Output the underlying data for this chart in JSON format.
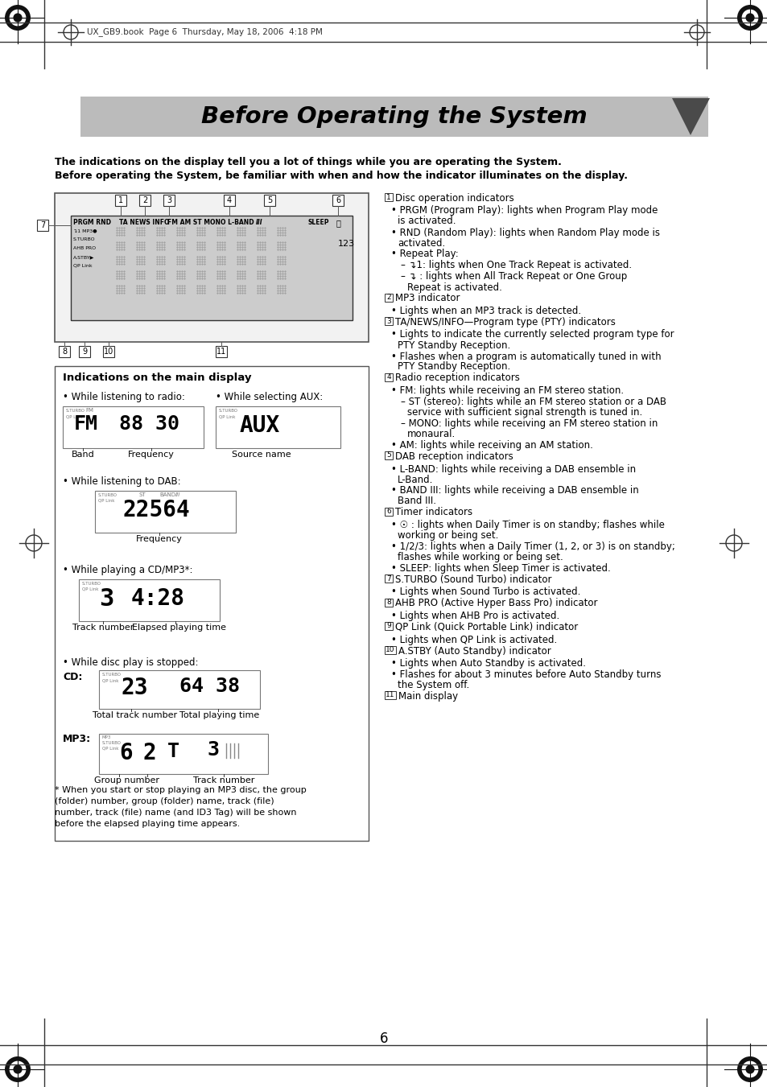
{
  "page_bg": "#ffffff",
  "header_file_text": "UX_GB9.book  Page 6  Thursday, May 18, 2006  4:18 PM",
  "title_text": "Before Operating the System",
  "intro_line1": "The indications on the display tell you a lot of things while you are operating the System.",
  "intro_line2": "Before operating the System, be familiar with when and how the indicator illuminates on the display.",
  "left_panel_title": "Indications on the main display",
  "right_col_items": [
    {
      "num": "1",
      "text": "Disc operation indicators"
    },
    {
      "bullet": "PRGM (Program Play): lights when Program Play mode\nis activated."
    },
    {
      "bullet": "RND (Random Play): lights when Random Play mode is\nactivated."
    },
    {
      "bullet": "Repeat Play:"
    },
    {
      "sub": "– ↴1: lights when One Track Repeat is activated."
    },
    {
      "sub": "– ↴ : lights when All Track Repeat or One Group\nRepeat is activated."
    },
    {
      "num": "2",
      "text": "MP3 indicator"
    },
    {
      "bullet": "Lights when an MP3 track is detected."
    },
    {
      "num": "3",
      "text": "TA/NEWS/INFO—Program type (PTY) indicators"
    },
    {
      "bullet": "Lights to indicate the currently selected program type for\nPTY Standby Reception."
    },
    {
      "bullet": "Flashes when a program is automatically tuned in with\nPTY Standby Reception."
    },
    {
      "num": "4",
      "text": "Radio reception indicators"
    },
    {
      "bullet": "FM: lights while receiving an FM stereo station."
    },
    {
      "sub": "– ST (stereo): lights while an FM stereo station or a DAB\nservice with sufficient signal strength is tuned in."
    },
    {
      "sub": "– MONO: lights while receiving an FM stereo station in\nmonaural."
    },
    {
      "bullet": "AM: lights while receiving an AM station."
    },
    {
      "num": "5",
      "text": "DAB reception indicators"
    },
    {
      "bullet": "L-BAND: lights while receiving a DAB ensemble in\nL-Band."
    },
    {
      "bullet": "BAND III: lights while receiving a DAB ensemble in\nBand III."
    },
    {
      "num": "6",
      "text": "Timer indicators"
    },
    {
      "bullet": "☉ : lights when Daily Timer is on standby; flashes while\nworking or being set."
    },
    {
      "bullet": "1/2/3: lights when a Daily Timer (1, 2, or 3) is on standby;\nflashes while working or being set."
    },
    {
      "bullet": "SLEEP: lights when Sleep Timer is activated."
    },
    {
      "num": "7",
      "text": "S.TURBO (Sound Turbo) indicator"
    },
    {
      "bullet": "Lights when Sound Turbo is activated."
    },
    {
      "num": "8",
      "text": "AHB PRO (Active Hyper Bass Pro) indicator"
    },
    {
      "bullet": "Lights when AHB Pro is activated."
    },
    {
      "num": "9",
      "text": "QP Link (Quick Portable Link) indicator"
    },
    {
      "bullet": "Lights when QP Link is activated."
    },
    {
      "num": "10",
      "text": "A.STBY (Auto Standby) indicator"
    },
    {
      "bullet": "Lights when Auto Standby is activated."
    },
    {
      "bullet": "Flashes for about 3 minutes before Auto Standby turns\nthe System off."
    },
    {
      "num": "11",
      "text": "Main display"
    }
  ],
  "page_number": "6"
}
